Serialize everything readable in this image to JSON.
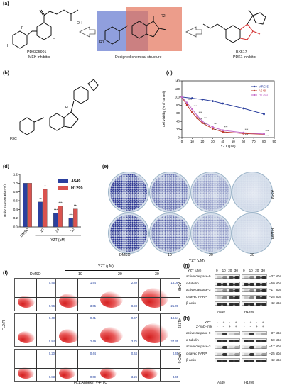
{
  "panel_a": {
    "letter": "(a)",
    "left_name": "PD0325901",
    "left_desc": "MEK inhibitor",
    "mid_name": "Designed chemical structure",
    "right_name": "BX517",
    "right_desc": "PDK1 inhibitor",
    "r1": "R1",
    "r2": "R2",
    "oh": "OH",
    "f": "F",
    "i": "I",
    "nh": "H"
  },
  "panel_b": {
    "letter": "(b)",
    "cf3": "F3C",
    "oh": "OH",
    "o": "O"
  },
  "panel_c": {
    "letter": "(c)",
    "chart_data": {
      "type": "line",
      "xlabel": "YZT (μM)",
      "ylabel": "Cell viability (% of control)",
      "ylim": [
        0,
        140
      ],
      "yticks": [
        0,
        20,
        40,
        60,
        80,
        100,
        120,
        140
      ],
      "xticks": [
        0,
        10,
        20,
        30,
        40,
        50,
        60,
        70,
        80,
        90
      ],
      "series": [
        {
          "name": "MRC-5",
          "color": "#2b3f9e",
          "x": [
            0,
            10,
            20,
            30,
            40,
            60,
            80
          ],
          "y": [
            100,
            97,
            94,
            90,
            84,
            72,
            58
          ]
        },
        {
          "name": "A549",
          "color": "#c0392b",
          "x": [
            0,
            5,
            10,
            15,
            20,
            30,
            40,
            60,
            80
          ],
          "y": [
            100,
            80,
            62,
            48,
            36,
            22,
            14,
            10,
            8
          ]
        },
        {
          "name": "H1299",
          "color": "#c36bc9",
          "x": [
            0,
            5,
            10,
            15,
            20,
            30,
            40,
            60,
            80
          ],
          "y": [
            100,
            86,
            70,
            54,
            40,
            26,
            18,
            12,
            9
          ]
        }
      ],
      "stars": "***"
    }
  },
  "panel_d": {
    "letter": "(d)",
    "chart_data": {
      "type": "bar",
      "ylabel": "BrdU incorporation(%)",
      "xlabel": "YZT (μM)",
      "categories": [
        "DMSO",
        "10",
        "20",
        "30"
      ],
      "ylim": [
        0,
        1.2
      ],
      "yticks": [
        "0.0",
        "0.2",
        "0.4",
        "0.6",
        "0.8",
        "1.0",
        "1.2"
      ],
      "series": [
        {
          "name": "A549",
          "color": "#2b3f9e",
          "values": [
            1.0,
            0.57,
            0.32,
            0.2
          ]
        },
        {
          "name": "H1299",
          "color": "#d9534f",
          "values": [
            1.0,
            0.86,
            0.48,
            0.41
          ]
        }
      ],
      "sig": [
        [
          "",
          ""
        ],
        [
          "**",
          "*"
        ],
        [
          "***",
          "***"
        ],
        [
          "***",
          "***"
        ]
      ]
    }
  },
  "panel_e": {
    "letter": "(e)",
    "row_labels": [
      "A549",
      "H1299"
    ],
    "col_labels": [
      "DMSO",
      "10",
      "20",
      "30"
    ],
    "xlabel": "YZT (μM)"
  },
  "panel_f": {
    "letter": "(f)",
    "top_label": "YZT (μM)",
    "col_labels": [
      "DMSO",
      "10",
      "20",
      "30"
    ],
    "row_labels": [
      "A549",
      "H1299",
      "MRC-5"
    ],
    "ylabel": "FL2:PI",
    "xlabel": "FL1:Annexin V-FITC",
    "quadrants": [
      [
        [
          "0.45",
          "0.96"
        ],
        [
          "1.44",
          "3.65"
        ],
        [
          "2.89",
          "8.93"
        ],
        [
          "15.05",
          "21.09"
        ]
      ],
      [
        [
          "0.40",
          "0.84"
        ],
        [
          "0.41",
          "2.49"
        ],
        [
          "0.67",
          "3.75"
        ],
        [
          "18.54",
          "27.35"
        ]
      ],
      [
        [
          "0.20",
          "0.83"
        ],
        [
          "0.44",
          "0.69"
        ],
        [
          "0.44",
          "3.26"
        ],
        [
          "0.45",
          "3.45"
        ]
      ]
    ]
  },
  "panel_g": {
    "letter": "(g)",
    "header": "YZT (μM)",
    "doses": [
      "0",
      "10",
      "20",
      "30",
      "0",
      "10",
      "20",
      "30"
    ],
    "rows": [
      {
        "name": "active caspase-9",
        "kda": "37 kDa"
      },
      {
        "name": "α-tubulin",
        "kda": "50 kDa"
      },
      {
        "name": "active caspase-3",
        "kda": "17 kDa"
      },
      {
        "name": "cleaved PARP",
        "kda": "25 kDa"
      },
      {
        "name": "β-actin",
        "kda": "42 kDa"
      }
    ],
    "cells": [
      "A549",
      "H1299"
    ]
  },
  "panel_h": {
    "letter": "(h)",
    "cond_rows": [
      {
        "name": "YZT",
        "vals": [
          "-",
          "+",
          "-",
          "+",
          "-",
          "+",
          "-",
          "+"
        ]
      },
      {
        "name": "Z-VAD-fmk",
        "vals": [
          "-",
          "-",
          "+",
          "+",
          "-",
          "-",
          "+",
          "+"
        ]
      }
    ],
    "rows": [
      {
        "name": "active caspase-9",
        "kda": "37 kDa"
      },
      {
        "name": "α-tubulin",
        "kda": "50 kDa"
      },
      {
        "name": "active caspase-3",
        "kda": "17 kDa"
      },
      {
        "name": "cleaved PARP",
        "kda": "25 kDa"
      },
      {
        "name": "β-actin",
        "kda": "42 kDa"
      }
    ],
    "cells": [
      "A549",
      "H1299"
    ]
  }
}
